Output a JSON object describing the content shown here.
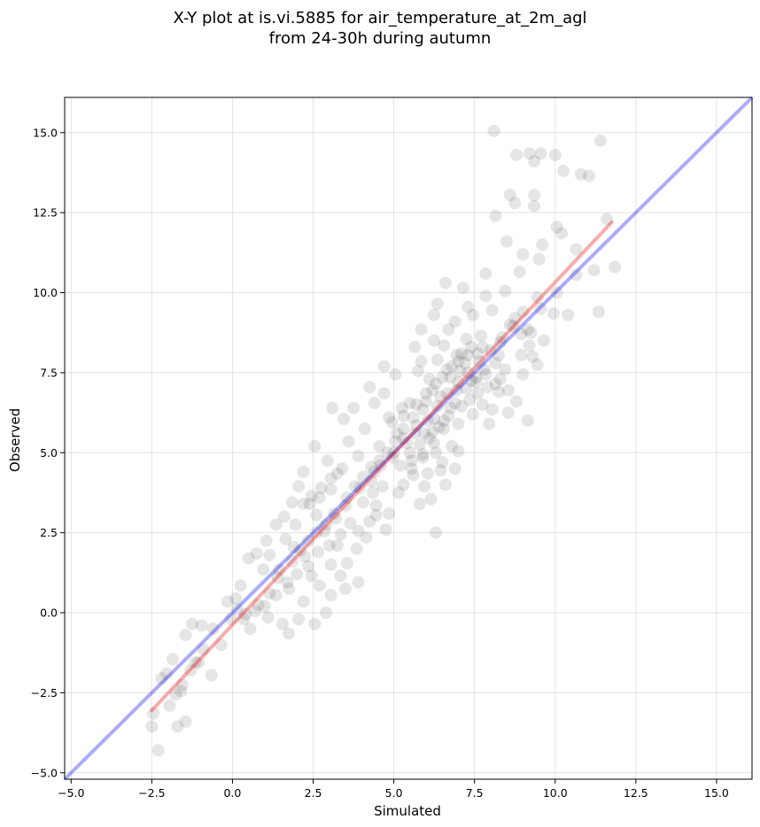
{
  "chart_data": {
    "type": "scatter",
    "title_lines": [
      "X-Y plot at is.vi.5885 for air_temperature_at_2m_agl",
      "from 24-30h during autumn"
    ],
    "xlabel": "Simulated",
    "ylabel": "Observed",
    "xlim": [
      -5.2,
      16.1
    ],
    "ylim": [
      -5.2,
      16.1
    ],
    "x_ticks": [
      -5.0,
      -2.5,
      0.0,
      2.5,
      5.0,
      7.5,
      10.0,
      12.5,
      15.0
    ],
    "y_ticks": [
      -5.0,
      -2.5,
      0.0,
      2.5,
      5.0,
      7.5,
      10.0,
      12.5,
      15.0
    ],
    "x_tick_labels": [
      "−5.0",
      "−2.5",
      "0.0",
      "2.5",
      "5.0",
      "7.5",
      "10.0",
      "12.5",
      "15.0"
    ],
    "y_tick_labels": [
      "−5.0",
      "−2.5",
      "0.0",
      "2.5",
      "5.0",
      "7.5",
      "10.0",
      "12.5",
      "15.0"
    ],
    "grid": true,
    "point_color": "#000000",
    "point_alpha": 0.1,
    "identity_line": {
      "x": [
        -5.2,
        16.1
      ],
      "y": [
        -5.2,
        16.1
      ],
      "color": "#0000ee",
      "alpha": 0.33
    },
    "fit_line": {
      "x": [
        -2.5,
        11.75
      ],
      "y": [
        -3.05,
        12.2
      ],
      "color": "#ee0000",
      "alpha": 0.33
    },
    "points": [
      [
        8.1,
        15.05
      ],
      [
        9.2,
        14.35
      ],
      [
        9.55,
        14.35
      ],
      [
        10.0,
        14.3
      ],
      [
        11.4,
        14.75
      ],
      [
        8.8,
        14.3
      ],
      [
        9.35,
        14.1
      ],
      [
        10.25,
        13.8
      ],
      [
        10.8,
        13.7
      ],
      [
        11.05,
        13.65
      ],
      [
        8.6,
        13.05
      ],
      [
        9.35,
        13.05
      ],
      [
        8.75,
        12.8
      ],
      [
        9.35,
        12.7
      ],
      [
        11.6,
        12.3
      ],
      [
        8.15,
        12.4
      ],
      [
        8.5,
        11.6
      ],
      [
        9.6,
        11.5
      ],
      [
        10.05,
        12.05
      ],
      [
        10.2,
        11.85
      ],
      [
        10.65,
        11.35
      ],
      [
        9.0,
        11.2
      ],
      [
        9.5,
        11.05
      ],
      [
        8.9,
        10.65
      ],
      [
        11.2,
        10.7
      ],
      [
        11.85,
        10.8
      ],
      [
        10.65,
        10.55
      ],
      [
        10.4,
        9.3
      ],
      [
        11.35,
        9.4
      ],
      [
        9.55,
        9.5
      ],
      [
        9.95,
        9.35
      ],
      [
        9.15,
        8.85
      ],
      [
        10.05,
        10.0
      ],
      [
        6.6,
        10.3
      ],
      [
        7.15,
        10.15
      ],
      [
        7.85,
        10.6
      ],
      [
        6.35,
        9.65
      ],
      [
        6.25,
        9.3
      ],
      [
        7.85,
        9.9
      ],
      [
        8.45,
        10.05
      ],
      [
        8.05,
        9.45
      ],
      [
        7.3,
        9.55
      ],
      [
        8.75,
        9.2
      ],
      [
        9.2,
        8.35
      ],
      [
        9.3,
        8.0
      ],
      [
        9.65,
        8.5
      ],
      [
        9.45,
        7.75
      ],
      [
        9.0,
        7.45
      ],
      [
        9.15,
        6.0
      ],
      [
        8.8,
        6.6
      ],
      [
        8.55,
        6.25
      ],
      [
        8.25,
        6.9
      ],
      [
        8.05,
        6.35
      ],
      [
        7.95,
        5.9
      ],
      [
        7.45,
        6.2
      ],
      [
        7.0,
        5.05
      ],
      [
        7.0,
        5.9
      ],
      [
        6.95,
        6.95
      ],
      [
        7.8,
        7.6
      ],
      [
        7.6,
        8.1
      ],
      [
        7.4,
        7.25
      ],
      [
        7.2,
        7.8
      ],
      [
        6.95,
        8.05
      ],
      [
        6.75,
        7.35
      ],
      [
        7.05,
        7.55
      ],
      [
        7.55,
        7.35
      ],
      [
        7.7,
        8.65
      ],
      [
        8.3,
        8.45
      ],
      [
        8.45,
        7.6
      ],
      [
        8.15,
        7.15
      ],
      [
        7.25,
        8.55
      ],
      [
        6.9,
        9.1
      ],
      [
        6.55,
        8.35
      ],
      [
        6.35,
        7.9
      ],
      [
        6.1,
        7.3
      ],
      [
        5.85,
        7.85
      ],
      [
        5.75,
        7.55
      ],
      [
        5.5,
        6.55
      ],
      [
        6.0,
        6.6
      ],
      [
        6.25,
        6.05
      ],
      [
        6.45,
        6.75
      ],
      [
        6.75,
        6.4
      ],
      [
        7.1,
        6.45
      ],
      [
        7.35,
        6.65
      ],
      [
        6.55,
        5.75
      ],
      [
        6.25,
        5.3
      ],
      [
        5.95,
        5.6
      ],
      [
        5.7,
        5.85
      ],
      [
        5.4,
        5.3
      ],
      [
        5.9,
        4.85
      ],
      [
        6.5,
        4.7
      ],
      [
        6.8,
        5.2
      ],
      [
        6.9,
        4.5
      ],
      [
        6.6,
        4.0
      ],
      [
        5.55,
        4.5
      ],
      [
        5.1,
        5.6
      ],
      [
        4.85,
        6.1
      ],
      [
        5.25,
        6.4
      ],
      [
        4.7,
        6.85
      ],
      [
        4.4,
        6.55
      ],
      [
        4.1,
        5.75
      ],
      [
        4.55,
        5.2
      ],
      [
        4.95,
        4.85
      ],
      [
        4.4,
        4.4
      ],
      [
        3.9,
        4.9
      ],
      [
        3.6,
        5.35
      ],
      [
        3.45,
        6.05
      ],
      [
        3.75,
        6.4
      ],
      [
        3.1,
        6.4
      ],
      [
        4.25,
        7.05
      ],
      [
        5.05,
        7.45
      ],
      [
        4.7,
        7.7
      ],
      [
        5.65,
        8.3
      ],
      [
        6.25,
        8.5
      ],
      [
        5.85,
        8.85
      ],
      [
        6.7,
        8.85
      ],
      [
        7.45,
        9.3
      ],
      [
        5.6,
        4.3
      ],
      [
        5.95,
        3.95
      ],
      [
        6.15,
        3.55
      ],
      [
        6.3,
        2.5
      ],
      [
        5.8,
        3.4
      ],
      [
        5.15,
        3.75
      ],
      [
        4.85,
        3.1
      ],
      [
        4.45,
        3.35
      ],
      [
        4.75,
        2.6
      ],
      [
        4.25,
        2.85
      ],
      [
        4.15,
        2.35
      ],
      [
        3.85,
        2.0
      ],
      [
        3.55,
        1.55
      ],
      [
        3.35,
        1.15
      ],
      [
        3.05,
        1.5
      ],
      [
        3.25,
        2.1
      ],
      [
        2.85,
        2.55
      ],
      [
        2.6,
        3.05
      ],
      [
        2.7,
        3.6
      ],
      [
        3.05,
        3.85
      ],
      [
        3.25,
        4.35
      ],
      [
        2.95,
        4.75
      ],
      [
        2.55,
        5.2
      ],
      [
        2.2,
        4.4
      ],
      [
        2.05,
        3.95
      ],
      [
        1.85,
        3.45
      ],
      [
        1.6,
        3.0
      ],
      [
        1.35,
        2.75
      ],
      [
        1.65,
        2.3
      ],
      [
        1.9,
        2.05
      ],
      [
        2.25,
        1.75
      ],
      [
        2.45,
        1.15
      ],
      [
        2.7,
        0.85
      ],
      [
        3.05,
        0.55
      ],
      [
        3.5,
        0.75
      ],
      [
        3.9,
        0.95
      ],
      [
        2.9,
        0.0
      ],
      [
        2.55,
        -0.35
      ],
      [
        2.05,
        -0.2
      ],
      [
        2.2,
        0.35
      ],
      [
        1.75,
        0.75
      ],
      [
        1.4,
        1.1
      ],
      [
        1.15,
        0.6
      ],
      [
        0.95,
        1.35
      ],
      [
        0.75,
        1.85
      ],
      [
        0.5,
        1.7
      ],
      [
        1.05,
        2.25
      ],
      [
        1.15,
        1.8
      ],
      [
        0.8,
        0.25
      ],
      [
        1.1,
        -0.15
      ],
      [
        1.55,
        -0.35
      ],
      [
        1.75,
        -0.65
      ],
      [
        0.35,
        -0.2
      ],
      [
        0.1,
        0.45
      ],
      [
        0.25,
        0.85
      ],
      [
        -0.15,
        0.35
      ],
      [
        -0.05,
        -0.2
      ],
      [
        -0.6,
        -0.5
      ],
      [
        -0.95,
        -0.4
      ],
      [
        -1.25,
        -0.35
      ],
      [
        -1.45,
        -0.7
      ],
      [
        -0.9,
        -1.15
      ],
      [
        -1.05,
        -1.55
      ],
      [
        -1.3,
        -1.8
      ],
      [
        -1.55,
        -2.25
      ],
      [
        -0.65,
        -1.95
      ],
      [
        -1.75,
        -2.55
      ],
      [
        -1.95,
        -2.9
      ],
      [
        -1.7,
        -3.55
      ],
      [
        -1.45,
        -3.4
      ],
      [
        -2.05,
        -1.9
      ],
      [
        -2.2,
        -2.05
      ],
      [
        -2.45,
        -3.15
      ],
      [
        -2.5,
        -3.55
      ],
      [
        -2.3,
        -4.3
      ],
      [
        -1.6,
        -2.45
      ],
      [
        -1.85,
        -1.45
      ],
      [
        -1.15,
        -1.55
      ],
      [
        -0.35,
        -1.0
      ],
      [
        0.55,
        -0.5
      ],
      [
        1.45,
        1.35
      ],
      [
        1.95,
        2.75
      ],
      [
        2.4,
        3.4
      ],
      [
        3.15,
        3.1
      ],
      [
        3.55,
        3.6
      ],
      [
        3.95,
        3.9
      ],
      [
        4.3,
        4.1
      ],
      [
        4.6,
        4.6
      ],
      [
        5.0,
        5.0
      ],
      [
        5.3,
        5.45
      ],
      [
        5.65,
        5.6
      ],
      [
        6.05,
        6.0
      ],
      [
        6.35,
        6.45
      ],
      [
        6.65,
        6.85
      ],
      [
        7.0,
        7.2
      ],
      [
        7.3,
        7.5
      ],
      [
        7.65,
        7.85
      ],
      [
        8.0,
        8.2
      ],
      [
        8.35,
        8.6
      ],
      [
        8.7,
        8.95
      ],
      [
        9.0,
        9.4
      ],
      [
        9.45,
        9.85
      ],
      [
        6.1,
        5.45
      ],
      [
        6.4,
        5.8
      ],
      [
        6.7,
        6.15
      ],
      [
        5.5,
        5.0
      ],
      [
        5.8,
        5.25
      ],
      [
        6.2,
        5.65
      ],
      [
        6.55,
        6.0
      ],
      [
        6.9,
        6.55
      ],
      [
        7.25,
        7.0
      ],
      [
        7.55,
        7.2
      ],
      [
        7.85,
        7.45
      ],
      [
        8.15,
        7.8
      ],
      [
        7.6,
        6.85
      ],
      [
        7.9,
        7.05
      ],
      [
        8.25,
        8.05
      ],
      [
        7.4,
        8.3
      ],
      [
        7.1,
        8.1
      ],
      [
        6.8,
        7.7
      ],
      [
        6.5,
        7.35
      ],
      [
        6.2,
        6.95
      ],
      [
        5.9,
        6.35
      ],
      [
        5.6,
        6.1
      ],
      [
        5.3,
        5.75
      ],
      [
        5.05,
        5.35
      ],
      [
        4.8,
        5.0
      ],
      [
        4.55,
        4.75
      ],
      [
        4.3,
        4.55
      ],
      [
        4.05,
        4.25
      ],
      [
        3.8,
        3.95
      ],
      [
        3.5,
        3.35
      ],
      [
        3.2,
        2.95
      ],
      [
        2.9,
        2.75
      ],
      [
        2.6,
        2.5
      ],
      [
        2.35,
        2.25
      ],
      [
        2.1,
        1.95
      ],
      [
        1.85,
        1.6
      ],
      [
        5.2,
        4.6
      ],
      [
        5.55,
        4.75
      ],
      [
        5.9,
        4.95
      ],
      [
        6.3,
        5.0
      ],
      [
        4.95,
        5.95
      ],
      [
        5.3,
        6.15
      ],
      [
        5.7,
        6.5
      ],
      [
        6.0,
        6.85
      ],
      [
        6.3,
        7.15
      ],
      [
        6.65,
        7.6
      ],
      [
        7.0,
        7.85
      ],
      [
        7.3,
        8.05
      ],
      [
        7.75,
        8.3
      ],
      [
        8.6,
        9.0
      ],
      [
        8.95,
        8.7
      ],
      [
        3.4,
        4.5
      ],
      [
        3.05,
        4.2
      ],
      [
        2.75,
        3.9
      ],
      [
        2.45,
        3.65
      ],
      [
        2.2,
        3.4
      ],
      [
        4.05,
        3.45
      ],
      [
        4.35,
        3.75
      ],
      [
        4.65,
        3.95
      ],
      [
        3.65,
        2.8
      ],
      [
        3.35,
        2.45
      ],
      [
        3.0,
        2.1
      ],
      [
        2.65,
        1.9
      ],
      [
        2.35,
        1.45
      ],
      [
        2.0,
        1.2
      ],
      [
        1.7,
        0.95
      ],
      [
        1.35,
        0.55
      ],
      [
        1.0,
        0.2
      ],
      [
        0.7,
        0.05
      ],
      [
        0.4,
        -0.05
      ],
      [
        0.15,
        0.1
      ],
      [
        7.75,
        6.5
      ],
      [
        8.3,
        7.3
      ],
      [
        8.55,
        6.95
      ],
      [
        8.95,
        8.05
      ],
      [
        9.25,
        8.75
      ],
      [
        6.05,
        4.35
      ],
      [
        6.45,
        4.45
      ],
      [
        5.3,
        4.0
      ],
      [
        4.45,
        3.05
      ],
      [
        3.9,
        2.55
      ]
    ]
  }
}
